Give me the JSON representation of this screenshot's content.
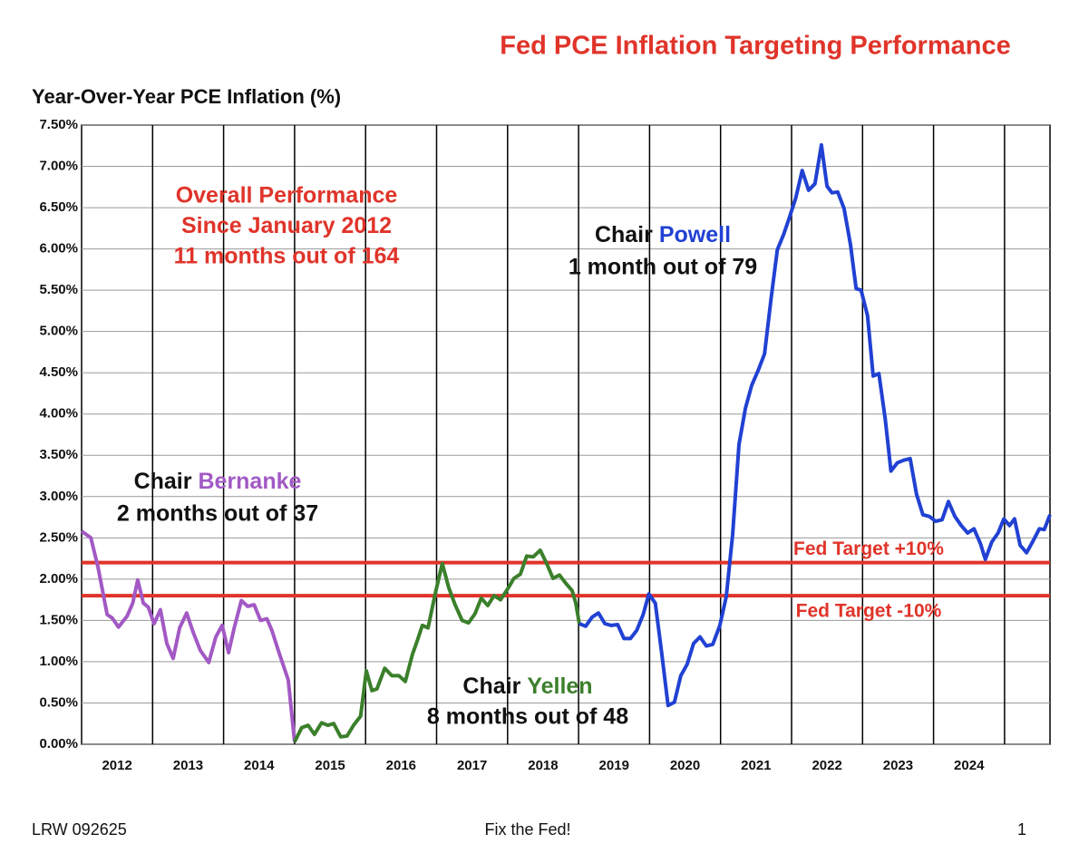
{
  "chart_data": {
    "type": "line",
    "title": "Fed PCE Inflation Targeting Performance",
    "y_label": "Year-Over-Year PCE Inflation (%)",
    "footer_left": "LRW 092625",
    "footer_center": "Fix the Fed!",
    "footer_right": "1",
    "xlim": [
      2012,
      2025.64
    ],
    "ylim": [
      0,
      7.5
    ],
    "yticks": [
      {
        "value": 0,
        "label": "0.00%"
      },
      {
        "value": 0.5,
        "label": "0.50%"
      },
      {
        "value": 1,
        "label": "1.00%"
      },
      {
        "value": 1.5,
        "label": "1.50%"
      },
      {
        "value": 2,
        "label": "2.00%"
      },
      {
        "value": 2.5,
        "label": "2.50%"
      },
      {
        "value": 3,
        "label": "3.00%"
      },
      {
        "value": 3.5,
        "label": "3.50%"
      },
      {
        "value": 4,
        "label": "4.00%"
      },
      {
        "value": 4.5,
        "label": "4.50%"
      },
      {
        "value": 5,
        "label": "5.00%"
      },
      {
        "value": 5.5,
        "label": "5.50%"
      },
      {
        "value": 6,
        "label": "6.00%"
      },
      {
        "value": 6.5,
        "label": "6.50%"
      },
      {
        "value": 7,
        "label": "7.00%"
      },
      {
        "value": 7.5,
        "label": "7.50%"
      }
    ],
    "xticks": [
      {
        "value": 2012.5,
        "label": "2012"
      },
      {
        "value": 2013.5,
        "label": "2013"
      },
      {
        "value": 2014.5,
        "label": "2014"
      },
      {
        "value": 2015.5,
        "label": "2015"
      },
      {
        "value": 2016.5,
        "label": "2016"
      },
      {
        "value": 2017.5,
        "label": "2017"
      },
      {
        "value": 2018.5,
        "label": "2018"
      },
      {
        "value": 2019.5,
        "label": "2019"
      },
      {
        "value": 2020.5,
        "label": "2020"
      },
      {
        "value": 2021.5,
        "label": "2021"
      },
      {
        "value": 2022.5,
        "label": "2022"
      },
      {
        "value": 2023.5,
        "label": "2023"
      },
      {
        "value": 2024.5,
        "label": "2024"
      }
    ],
    "x_gridlines": [
      2013,
      2014,
      2015,
      2016,
      2017,
      2018,
      2019,
      2020,
      2021,
      2022,
      2023,
      2024,
      2025
    ],
    "grid": true,
    "reference_lines": [
      {
        "value": 2.2,
        "label": "Fed Target +10%",
        "color": "#e0342a"
      },
      {
        "value": 1.8,
        "label": "Fed Target -10%",
        "color": "#e0342a"
      }
    ],
    "summary": {
      "lines": [
        "Overall Performance",
        "Since January 2012",
        "11 months out of 164"
      ],
      "color": "#e0342a"
    },
    "series": [
      {
        "name": "Bernanke",
        "label_prefix": "Chair",
        "detail": "2 months out of 37",
        "color": "#a259c4",
        "x": [
          2012.0,
          2012.13,
          2012.23,
          2012.36,
          2012.43,
          2012.52,
          2012.64,
          2012.72,
          2012.79,
          2012.87,
          2012.94,
          2013.02,
          2013.11,
          2013.2,
          2013.29,
          2013.38,
          2013.48,
          2013.57,
          2013.67,
          2013.79,
          2013.89,
          2013.98,
          2014.07,
          2014.15,
          2014.25,
          2014.34,
          2014.43,
          2014.52,
          2014.61,
          2014.68,
          2014.78,
          2014.91,
          2015.0
        ],
        "values": [
          2.58,
          2.5,
          2.15,
          1.57,
          1.53,
          1.42,
          1.55,
          1.71,
          1.99,
          1.71,
          1.66,
          1.46,
          1.63,
          1.22,
          1.04,
          1.41,
          1.59,
          1.36,
          1.14,
          0.99,
          1.3,
          1.44,
          1.11,
          1.41,
          1.74,
          1.67,
          1.69,
          1.5,
          1.52,
          1.38,
          1.11,
          0.78,
          0.03
        ]
      },
      {
        "name": "Yellen",
        "label_prefix": "Chair",
        "detail": "8 months out of 48",
        "color": "#3b7f2b",
        "x": [
          2015.0,
          2015.1,
          2015.19,
          2015.28,
          2015.38,
          2015.47,
          2015.55,
          2015.65,
          2015.74,
          2015.83,
          2015.93,
          2016.01,
          2016.09,
          2016.16,
          2016.27,
          2016.37,
          2016.47,
          2016.56,
          2016.66,
          2016.73,
          2016.8,
          2016.88,
          2016.98,
          2017.08,
          2017.17,
          2017.26,
          2017.36,
          2017.45,
          2017.54,
          2017.63,
          2017.72,
          2017.81,
          2017.9,
          2018.0,
          2018.09,
          2018.18,
          2018.27,
          2018.36,
          2018.46,
          2018.55,
          2018.64,
          2018.73,
          2018.82,
          2018.91,
          2018.96,
          2019.01
        ],
        "values": [
          0.03,
          0.2,
          0.23,
          0.12,
          0.26,
          0.23,
          0.25,
          0.09,
          0.1,
          0.23,
          0.34,
          0.89,
          0.65,
          0.67,
          0.92,
          0.83,
          0.83,
          0.76,
          1.09,
          1.26,
          1.44,
          1.41,
          1.82,
          2.19,
          1.9,
          1.69,
          1.5,
          1.47,
          1.58,
          1.77,
          1.68,
          1.8,
          1.75,
          1.88,
          2.01,
          2.06,
          2.28,
          2.27,
          2.35,
          2.19,
          2.01,
          2.05,
          1.95,
          1.86,
          1.71,
          1.46
        ]
      },
      {
        "name": "Powell",
        "label_prefix": "Chair",
        "detail": "1 month out of 79",
        "color": "#2141d3",
        "x": [
          2019.01,
          2019.1,
          2019.19,
          2019.28,
          2019.37,
          2019.46,
          2019.55,
          2019.64,
          2019.73,
          2019.82,
          2019.91,
          2019.99,
          2020.08,
          2020.17,
          2020.26,
          2020.35,
          2020.44,
          2020.53,
          2020.62,
          2020.71,
          2020.8,
          2020.89,
          2020.99,
          2021.08,
          2021.17,
          2021.26,
          2021.35,
          2021.44,
          2021.53,
          2021.62,
          2021.71,
          2021.8,
          2021.89,
          2021.97,
          2022.06,
          2022.15,
          2022.24,
          2022.33,
          2022.42,
          2022.5,
          2022.57,
          2022.65,
          2022.74,
          2022.83,
          2022.91,
          2022.98,
          2023.07,
          2023.15,
          2023.23,
          2023.32,
          2023.4,
          2023.49,
          2023.58,
          2023.67,
          2023.76,
          2023.85,
          2023.94,
          2024.03,
          2024.12,
          2024.21,
          2024.3,
          2024.39,
          2024.48,
          2024.57,
          2024.66,
          2024.73,
          2024.82,
          2024.91,
          2024.99,
          2025.07,
          2025.14,
          2025.22,
          2025.31,
          2025.4,
          2025.49,
          2025.56,
          2025.64
        ],
        "values": [
          1.46,
          1.43,
          1.54,
          1.59,
          1.46,
          1.44,
          1.45,
          1.28,
          1.28,
          1.38,
          1.57,
          1.82,
          1.71,
          1.11,
          0.47,
          0.51,
          0.83,
          0.97,
          1.22,
          1.3,
          1.19,
          1.21,
          1.44,
          1.79,
          2.54,
          3.63,
          4.07,
          4.35,
          4.53,
          4.73,
          5.39,
          5.99,
          6.18,
          6.38,
          6.62,
          6.95,
          6.71,
          6.79,
          7.26,
          6.76,
          6.68,
          6.69,
          6.49,
          6.05,
          5.52,
          5.5,
          5.19,
          4.46,
          4.49,
          3.94,
          3.31,
          3.41,
          3.44,
          3.46,
          3.03,
          2.78,
          2.76,
          2.7,
          2.72,
          2.94,
          2.76,
          2.65,
          2.56,
          2.61,
          2.43,
          2.24,
          2.45,
          2.56,
          2.73,
          2.65,
          2.73,
          2.41,
          2.32,
          2.46,
          2.61,
          2.6,
          2.78
        ]
      }
    ]
  }
}
